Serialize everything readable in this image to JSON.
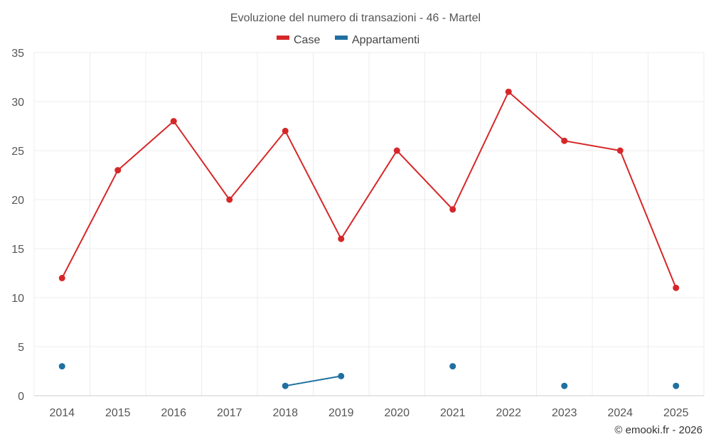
{
  "chart_data": {
    "type": "line",
    "title": "Evoluzione del numero di transazioni - 46 - Martel",
    "categories": [
      "2014",
      "2015",
      "2016",
      "2017",
      "2018",
      "2019",
      "2020",
      "2021",
      "2022",
      "2023",
      "2024",
      "2025"
    ],
    "yticks": [
      "0",
      "5",
      "10",
      "15",
      "20",
      "25",
      "30",
      "35"
    ],
    "ylim": [
      0,
      35
    ],
    "grid": true,
    "legend_position": "top-center",
    "series": [
      {
        "name": "Case",
        "color": "#d62728",
        "values": [
          12,
          23,
          28,
          20,
          27,
          16,
          25,
          19,
          31,
          26,
          25,
          11
        ]
      },
      {
        "name": "Appartamenti",
        "color": "#1f6fa0",
        "values": [
          3,
          null,
          null,
          null,
          1,
          2,
          null,
          3,
          null,
          1,
          null,
          1
        ]
      }
    ]
  },
  "credit": "© emooki.fr - 2026"
}
